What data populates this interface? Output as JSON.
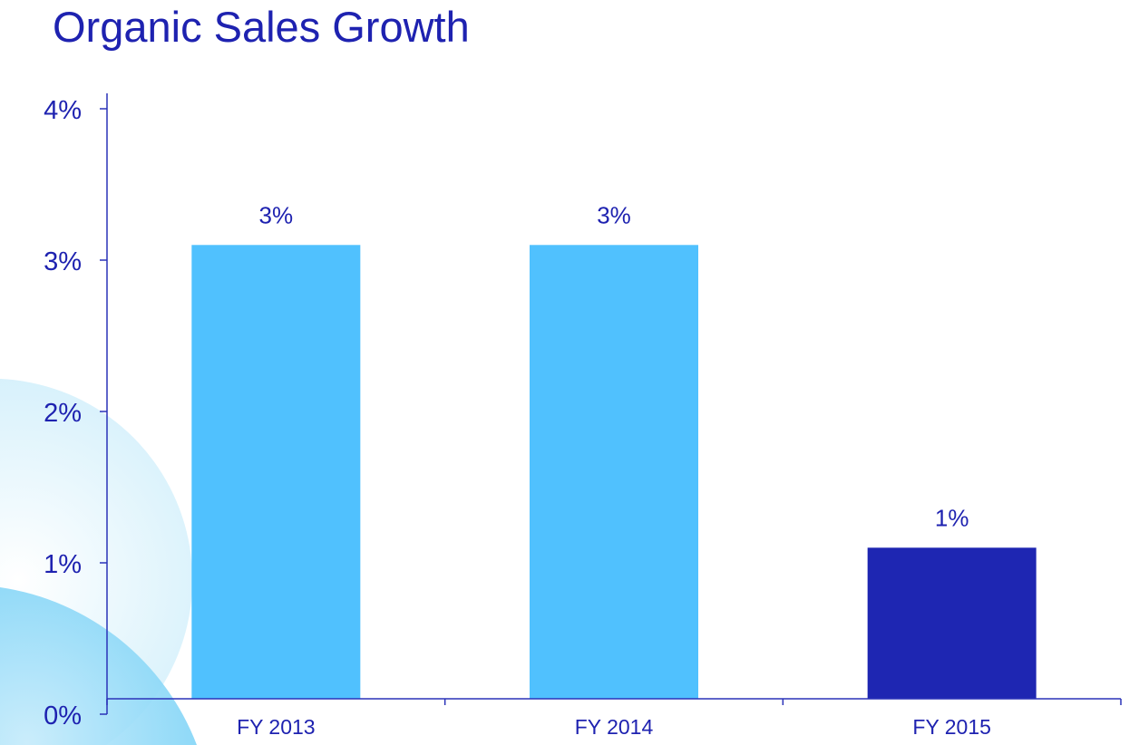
{
  "title": "Organic Sales Growth",
  "colors": {
    "text": "#1e22b0",
    "axis": "#2a32b8",
    "bar_light": "#50c1fe",
    "bar_dark": "#1e26b2"
  },
  "chart_data": {
    "type": "bar",
    "title": "Organic Sales Growth",
    "xlabel": "",
    "ylabel": "",
    "categories": [
      "FY 2013",
      "FY 2014",
      "FY 2015"
    ],
    "values": [
      3.1,
      3.1,
      1.1
    ],
    "data_labels": [
      "3%",
      "3%",
      "1%"
    ],
    "bar_colors": [
      "#50c1fe",
      "#50c1fe",
      "#1e26b2"
    ],
    "ylim": [
      0,
      4
    ],
    "yticks": [
      0,
      1,
      2,
      3,
      4
    ],
    "ytick_labels": [
      "0%",
      "1%",
      "2%",
      "3%",
      "4%"
    ],
    "grid": false,
    "legend": "none"
  }
}
